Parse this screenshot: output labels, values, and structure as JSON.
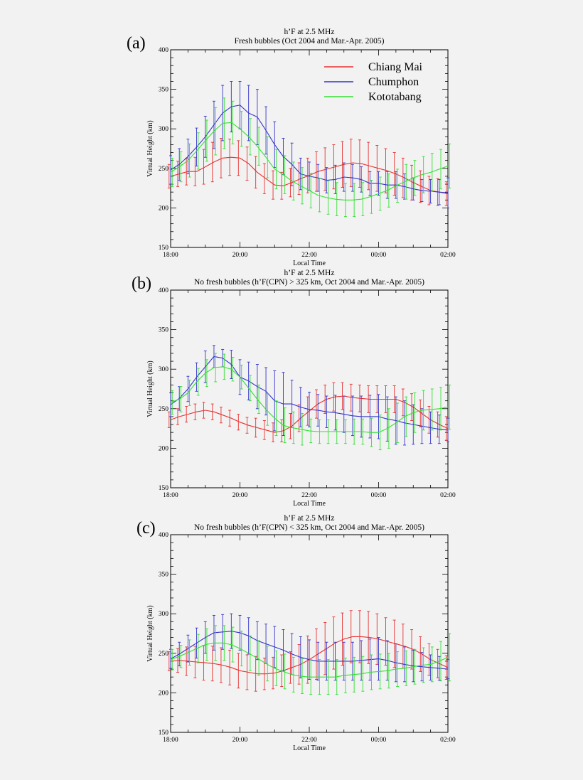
{
  "figure": {
    "xtick_labels": [
      "18:00",
      "20:00",
      "22:00",
      "00:00",
      "02:00"
    ],
    "ytick_labels": [
      "150",
      "200",
      "250",
      "300",
      "350",
      "400"
    ]
  },
  "legend": [
    {
      "name": "Chiang Mai",
      "color": "#e83030"
    },
    {
      "name": "Chumphon",
      "color": "#3333cc"
    },
    {
      "name": "Kototabang",
      "color": "#33e033"
    }
  ],
  "chart_data": [
    {
      "type": "line",
      "panel": "(a)",
      "title": "h’F at 2.5 MHz",
      "subtitle": "Fresh bubbles (Oct 2004 and Mar.-Apr. 2005)",
      "xlabel": "Local Time",
      "ylabel": "Virtual Height (km)",
      "xlim": [
        18,
        26
      ],
      "ylim": [
        150,
        400
      ],
      "xticks": [
        18,
        20,
        22,
        24,
        26
      ],
      "yticks": [
        150,
        200,
        250,
        300,
        350,
        400
      ],
      "x": [
        18.0,
        18.25,
        18.5,
        18.75,
        19.0,
        19.25,
        19.5,
        19.75,
        20.0,
        20.25,
        20.5,
        20.75,
        21.0,
        21.25,
        21.5,
        21.75,
        22.0,
        22.25,
        22.5,
        22.75,
        23.0,
        23.25,
        23.5,
        23.75,
        24.0,
        24.25,
        24.5,
        24.75,
        25.0,
        25.25,
        25.5,
        25.75,
        26.0
      ],
      "series": [
        {
          "name": "Chiang Mai",
          "color": "#e83030",
          "values": [
            240,
            243,
            246,
            246,
            252,
            258,
            263,
            264,
            263,
            256,
            245,
            237,
            229,
            228,
            232,
            237,
            241,
            246,
            249,
            252,
            255,
            257,
            256,
            253,
            250,
            247,
            243,
            238,
            232,
            227,
            222,
            220,
            218
          ],
          "errors": [
            15,
            16,
            17,
            18,
            22,
            25,
            25,
            23,
            22,
            21,
            20,
            19,
            18,
            17,
            18,
            20,
            22,
            25,
            27,
            28,
            29,
            30,
            30,
            30,
            29,
            28,
            27,
            25,
            22,
            20,
            18,
            17,
            15
          ]
        },
        {
          "name": "Chumphon",
          "color": "#3333cc",
          "values": [
            248,
            255,
            265,
            277,
            290,
            305,
            320,
            328,
            330,
            320,
            315,
            298,
            280,
            265,
            255,
            243,
            240,
            238,
            235,
            236,
            239,
            238,
            236,
            231,
            231,
            229,
            229,
            227,
            224,
            222,
            221,
            220,
            219
          ],
          "errors": [
            18,
            20,
            22,
            24,
            26,
            30,
            35,
            32,
            30,
            35,
            35,
            30,
            29,
            23,
            27,
            20,
            18,
            17,
            16,
            18,
            18,
            17,
            16,
            15,
            15,
            17,
            17,
            16,
            14,
            14,
            15,
            16,
            19
          ]
        },
        {
          "name": "Kototabang",
          "color": "#33e033",
          "values": [
            245,
            252,
            260,
            272,
            285,
            297,
            307,
            308,
            300,
            290,
            278,
            264,
            249,
            242,
            234,
            228,
            222,
            216,
            213,
            211,
            210,
            210,
            211,
            214,
            218,
            222,
            228,
            233,
            238,
            242,
            245,
            249,
            253
          ],
          "errors": [
            18,
            19,
            21,
            23,
            26,
            30,
            32,
            27,
            22,
            23,
            24,
            26,
            25,
            24,
            24,
            23,
            22,
            21,
            21,
            21,
            21,
            21,
            21,
            21,
            21,
            21,
            21,
            22,
            22,
            23,
            24,
            25,
            28
          ]
        }
      ]
    },
    {
      "type": "line",
      "panel": "(b)",
      "title": "h’F at 2.5 MHz",
      "subtitle": "No fresh bubbles (h’F(CPN) > 325 km, Oct 2004 and Mar.-Apr. 2005)",
      "xlabel": "Local Time",
      "ylabel": "Virtual Height (km)",
      "xlim": [
        18,
        26
      ],
      "ylim": [
        150,
        400
      ],
      "xticks": [
        18,
        20,
        22,
        24,
        26
      ],
      "yticks": [
        150,
        200,
        250,
        300,
        350,
        400
      ],
      "x": [
        18.0,
        18.25,
        18.5,
        18.75,
        19.0,
        19.25,
        19.5,
        19.75,
        20.0,
        20.25,
        20.5,
        20.75,
        21.0,
        21.25,
        21.5,
        21.75,
        22.0,
        22.25,
        22.5,
        22.75,
        23.0,
        23.25,
        23.5,
        23.75,
        24.0,
        24.25,
        24.5,
        24.75,
        25.0,
        25.25,
        25.5,
        25.75,
        26.0
      ],
      "series": [
        {
          "name": "Chiang Mai",
          "color": "#e83030",
          "values": [
            236,
            240,
            243,
            246,
            248,
            246,
            242,
            238,
            233,
            229,
            226,
            223,
            220,
            222,
            228,
            238,
            247,
            256,
            262,
            265,
            266,
            264,
            263,
            262,
            262,
            262,
            262,
            258,
            252,
            244,
            236,
            230,
            225
          ],
          "errors": [
            10,
            10,
            10,
            10,
            10,
            10,
            10,
            10,
            10,
            10,
            12,
            12,
            12,
            14,
            16,
            17,
            18,
            18,
            18,
            18,
            17,
            17,
            17,
            17,
            17,
            17,
            17,
            17,
            17,
            17,
            17,
            16,
            15
          ]
        },
        {
          "name": "Chumphon",
          "color": "#3333cc",
          "values": [
            255,
            263,
            275,
            290,
            303,
            316,
            314,
            306,
            290,
            285,
            278,
            272,
            260,
            256,
            256,
            252,
            249,
            248,
            246,
            245,
            243,
            241,
            240,
            240,
            240,
            237,
            235,
            232,
            230,
            228,
            226,
            224,
            223
          ],
          "errors": [
            15,
            15,
            16,
            18,
            20,
            14,
            11,
            18,
            22,
            24,
            28,
            30,
            38,
            40,
            30,
            25,
            22,
            20,
            20,
            22,
            23,
            25,
            26,
            27,
            28,
            28,
            30,
            28,
            25,
            22,
            20,
            18,
            15
          ]
        },
        {
          "name": "Kototabang",
          "color": "#33e033",
          "values": [
            258,
            262,
            270,
            284,
            295,
            302,
            303,
            300,
            290,
            276,
            262,
            249,
            238,
            229,
            226,
            224,
            222,
            221,
            221,
            221,
            221,
            221,
            221,
            220,
            220,
            225,
            232,
            240,
            245,
            248,
            249,
            250,
            252
          ],
          "errors": [
            15,
            16,
            16,
            17,
            17,
            18,
            16,
            15,
            15,
            16,
            18,
            20,
            22,
            22,
            20,
            20,
            15,
            15,
            15,
            15,
            15,
            16,
            16,
            18,
            22,
            25,
            25,
            25,
            25,
            25,
            26,
            27,
            28
          ]
        }
      ]
    },
    {
      "type": "line",
      "panel": "(c)",
      "title": "h’F at 2.5 MHz",
      "subtitle": "No fresh bubbles (h’F(CPN) < 325 km, Oct 2004 and Mar.-Apr. 2005)",
      "xlabel": "Local Time",
      "ylabel": "Virtual Height (km)",
      "xlim": [
        18,
        26
      ],
      "ylim": [
        150,
        400
      ],
      "xticks": [
        18,
        20,
        22,
        24,
        26
      ],
      "yticks": [
        150,
        200,
        250,
        300,
        350,
        400
      ],
      "x": [
        18.0,
        18.25,
        18.5,
        18.75,
        19.0,
        19.25,
        19.5,
        19.75,
        20.0,
        20.25,
        20.5,
        20.75,
        21.0,
        21.25,
        21.5,
        21.75,
        22.0,
        22.25,
        22.5,
        22.75,
        23.0,
        23.25,
        23.5,
        23.75,
        24.0,
        24.25,
        24.5,
        24.75,
        25.0,
        25.25,
        25.5,
        25.75,
        26.0
      ],
      "series": [
        {
          "name": "Chiang Mai",
          "color": "#e83030",
          "values": [
            240,
            241,
            240,
            239,
            238,
            237,
            235,
            232,
            228,
            226,
            224,
            224,
            225,
            228,
            232,
            236,
            242,
            249,
            256,
            263,
            268,
            271,
            271,
            270,
            268,
            265,
            262,
            259,
            255,
            249,
            242,
            237,
            232
          ],
          "errors": [
            12,
            15,
            18,
            20,
            22,
            22,
            22,
            22,
            22,
            22,
            22,
            20,
            20,
            20,
            20,
            25,
            30,
            32,
            33,
            33,
            33,
            33,
            33,
            33,
            32,
            30,
            30,
            28,
            25,
            22,
            20,
            18,
            15
          ]
        },
        {
          "name": "Chumphon",
          "color": "#3333cc",
          "values": [
            243,
            249,
            256,
            263,
            270,
            276,
            277,
            278,
            276,
            272,
            266,
            262,
            258,
            254,
            249,
            245,
            242,
            240,
            240,
            240,
            240,
            240,
            241,
            242,
            243,
            241,
            238,
            236,
            234,
            233,
            232,
            231,
            230
          ],
          "errors": [
            12,
            15,
            17,
            19,
            20,
            22,
            22,
            22,
            22,
            23,
            24,
            25,
            26,
            26,
            26,
            26,
            25,
            24,
            24,
            24,
            24,
            24,
            25,
            26,
            27,
            25,
            24,
            22,
            20,
            18,
            16,
            15,
            12
          ]
        },
        {
          "name": "Kototabang",
          "color": "#33e033",
          "values": [
            242,
            246,
            251,
            256,
            261,
            263,
            263,
            261,
            256,
            250,
            244,
            237,
            231,
            227,
            223,
            221,
            220,
            220,
            220,
            220,
            222,
            223,
            224,
            226,
            227,
            228,
            230,
            231,
            233,
            235,
            236,
            240,
            245
          ],
          "errors": [
            13,
            14,
            16,
            18,
            20,
            22,
            22,
            22,
            22,
            22,
            22,
            22,
            22,
            22,
            22,
            22,
            22,
            22,
            22,
            22,
            22,
            22,
            22,
            22,
            22,
            22,
            22,
            22,
            22,
            22,
            22,
            25,
            30
          ]
        }
      ]
    }
  ]
}
